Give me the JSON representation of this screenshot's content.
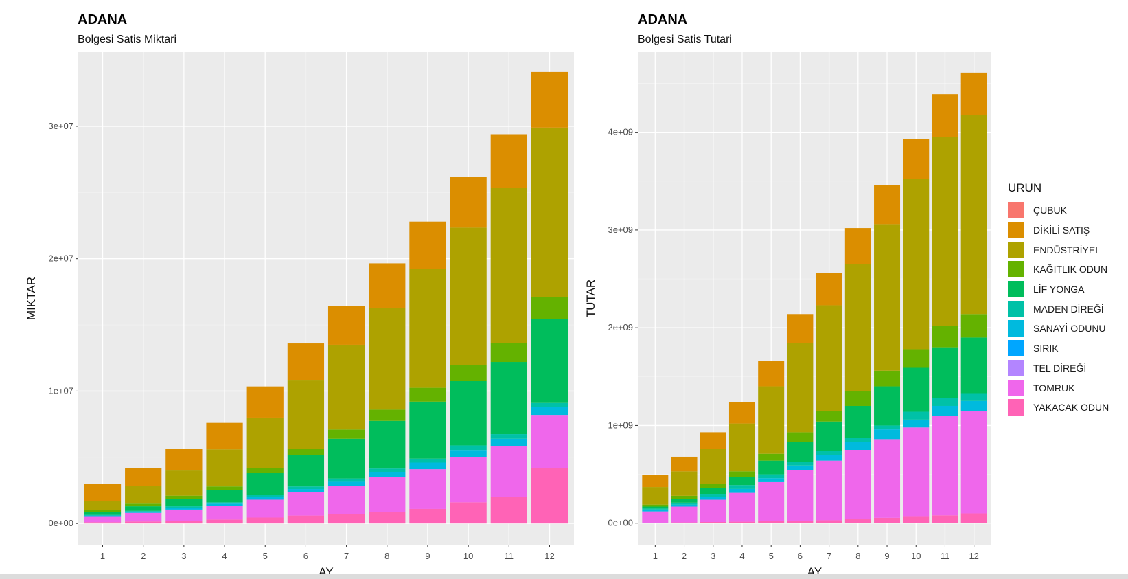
{
  "charts": [
    {
      "title": "ADANA",
      "subtitle": "Bolgesi Satis Miktari",
      "xlabel": "AY",
      "ylabel": "MIKTAR",
      "yticks": [
        "0e+00",
        "1e+07",
        "2e+07",
        "3e+07"
      ]
    },
    {
      "title": "ADANA",
      "subtitle": "Bolgesi Satis Tutari",
      "xlabel": "AY",
      "ylabel": "TUTAR",
      "yticks": [
        "0e+00",
        "1e+09",
        "2e+09",
        "3e+09",
        "4e+09"
      ]
    }
  ],
  "legend": {
    "title": "URUN",
    "items": [
      {
        "label": "ÇUBUK",
        "color": "#F8766D"
      },
      {
        "label": "DİKİLİ SATIŞ",
        "color": "#DB8E00"
      },
      {
        "label": "ENDÜSTRİYEL",
        "color": "#AEA200"
      },
      {
        "label": "KAĞITLIK ODUN",
        "color": "#64B200"
      },
      {
        "label": "LİF YONGA",
        "color": "#00BD5C"
      },
      {
        "label": "MADEN DİREĞİ",
        "color": "#00C1A7"
      },
      {
        "label": "SANAYİ ODUNU",
        "color": "#00BADE"
      },
      {
        "label": "SIRIK",
        "color": "#00A6FF"
      },
      {
        "label": "TEL DİREĞİ",
        "color": "#B385FF"
      },
      {
        "label": "TOMRUK",
        "color": "#EF67EB"
      },
      {
        "label": "YAKACAK ODUN",
        "color": "#FF63B6"
      }
    ]
  },
  "chart_data": [
    {
      "type": "bar",
      "stacked": true,
      "title": "ADANA",
      "subtitle": "Bolgesi Satis Miktari",
      "xlabel": "AY",
      "ylabel": "MIKTAR",
      "categories": [
        "1",
        "2",
        "3",
        "4",
        "5",
        "6",
        "7",
        "8",
        "9",
        "10",
        "11",
        "12"
      ],
      "ylim": [
        -1600000,
        35600000
      ],
      "yticks": [
        0,
        10000000,
        20000000,
        30000000
      ],
      "grid": true,
      "series": [
        {
          "name": "YAKACAK ODUN",
          "values": [
            100000,
            150000,
            200000,
            300000,
            450000,
            600000,
            700000,
            850000,
            1100000,
            1600000,
            2000000,
            4200000
          ]
        },
        {
          "name": "TEL DİREĞİ",
          "values": [
            0,
            0,
            0,
            0,
            0,
            0,
            0,
            0,
            0,
            0,
            0,
            0
          ]
        },
        {
          "name": "TOMRUK",
          "values": [
            400000,
            650000,
            850000,
            1050000,
            1350000,
            1750000,
            2150000,
            2650000,
            3000000,
            3400000,
            3850000,
            4000000
          ]
        },
        {
          "name": "SIRIK",
          "values": [
            0,
            0,
            0,
            0,
            0,
            0,
            0,
            0,
            0,
            0,
            0,
            0
          ]
        },
        {
          "name": "SANAYİ ODUNU",
          "values": [
            100000,
            100000,
            150000,
            150000,
            200000,
            250000,
            300000,
            400000,
            500000,
            550000,
            550000,
            600000
          ]
        },
        {
          "name": "MADEN DİREĞİ",
          "values": [
            50000,
            50000,
            100000,
            100000,
            150000,
            200000,
            250000,
            250000,
            300000,
            350000,
            350000,
            300000
          ]
        },
        {
          "name": "LİF YONGA",
          "values": [
            200000,
            350000,
            550000,
            900000,
            1650000,
            2350000,
            3000000,
            3600000,
            4300000,
            4850000,
            5450000,
            6350000
          ]
        },
        {
          "name": "KAĞITLIK ODUN",
          "values": [
            150000,
            200000,
            250000,
            300000,
            400000,
            500000,
            700000,
            850000,
            1050000,
            1200000,
            1450000,
            1650000
          ]
        },
        {
          "name": "ENDÜSTRİYEL",
          "values": [
            700000,
            1350000,
            1900000,
            2800000,
            3800000,
            5200000,
            6400000,
            7700000,
            9000000,
            10400000,
            11700000,
            12800000
          ]
        },
        {
          "name": "DİKİLİ SATIŞ",
          "values": [
            1300000,
            1350000,
            1650000,
            2000000,
            2350000,
            2750000,
            2950000,
            3350000,
            3550000,
            3850000,
            4050000,
            4200000
          ]
        },
        {
          "name": "ÇUBUK",
          "values": [
            0,
            0,
            0,
            0,
            0,
            0,
            0,
            0,
            0,
            0,
            0,
            0
          ]
        }
      ]
    },
    {
      "type": "bar",
      "stacked": true,
      "title": "ADANA",
      "subtitle": "Bolgesi Satis Tutari",
      "xlabel": "AY",
      "ylabel": "TUTAR",
      "categories": [
        "1",
        "2",
        "3",
        "4",
        "5",
        "6",
        "7",
        "8",
        "9",
        "10",
        "11",
        "12"
      ],
      "ylim": [
        -220000000,
        4820000000
      ],
      "yticks": [
        0,
        1000000000,
        2000000000,
        3000000000,
        4000000000
      ],
      "grid": true,
      "series": [
        {
          "name": "YAKACAK ODUN",
          "values": [
            5000000,
            8000000,
            12000000,
            15000000,
            20000000,
            25000000,
            30000000,
            40000000,
            55000000,
            65000000,
            80000000,
            100000000
          ]
        },
        {
          "name": "TEL DİREĞİ",
          "values": [
            0,
            0,
            0,
            0,
            0,
            0,
            0,
            0,
            0,
            0,
            0,
            0
          ]
        },
        {
          "name": "TOMRUK",
          "values": [
            115000000,
            162000000,
            228000000,
            295000000,
            400000000,
            515000000,
            610000000,
            710000000,
            805000000,
            915000000,
            1020000000,
            1050000000
          ]
        },
        {
          "name": "SIRIK",
          "values": [
            0,
            0,
            0,
            0,
            0,
            0,
            0,
            0,
            0,
            0,
            0,
            0
          ]
        },
        {
          "name": "SANAYİ ODUNU",
          "values": [
            20000000,
            20000000,
            30000000,
            40000000,
            40000000,
            50000000,
            60000000,
            80000000,
            100000000,
            80000000,
            100000000,
            100000000
          ]
        },
        {
          "name": "MADEN DİREĞİ",
          "values": [
            10000000,
            20000000,
            30000000,
            40000000,
            40000000,
            40000000,
            40000000,
            40000000,
            40000000,
            80000000,
            80000000,
            80000000
          ]
        },
        {
          "name": "LİF YONGA",
          "values": [
            20000000,
            40000000,
            60000000,
            80000000,
            140000000,
            200000000,
            300000000,
            330000000,
            400000000,
            450000000,
            520000000,
            570000000
          ]
        },
        {
          "name": "KAĞITLIK ODUN",
          "values": [
            20000000,
            30000000,
            40000000,
            60000000,
            70000000,
            100000000,
            110000000,
            150000000,
            160000000,
            190000000,
            220000000,
            240000000
          ]
        },
        {
          "name": "ENDÜSTRİYEL",
          "values": [
            180000000,
            250000000,
            360000000,
            490000000,
            690000000,
            910000000,
            1080000000,
            1300000000,
            1500000000,
            1740000000,
            1930000000,
            2040000000
          ]
        },
        {
          "name": "DİKİLİ SATIŞ",
          "values": [
            120000000,
            150000000,
            170000000,
            220000000,
            260000000,
            300000000,
            330000000,
            370000000,
            400000000,
            410000000,
            440000000,
            430000000
          ]
        },
        {
          "name": "ÇUBUK",
          "values": [
            0,
            0,
            0,
            0,
            0,
            0,
            0,
            0,
            0,
            0,
            0,
            0
          ]
        }
      ]
    }
  ]
}
